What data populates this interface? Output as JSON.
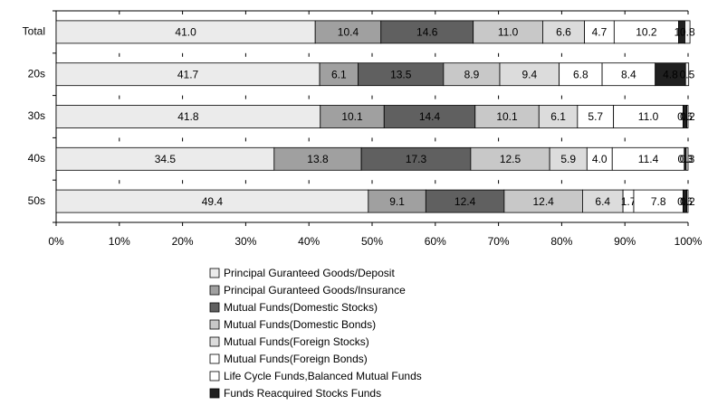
{
  "chart_data": {
    "type": "bar",
    "orientation": "horizontal",
    "stacked": true,
    "categories": [
      "Total",
      "20s",
      "30s",
      "40s",
      "50s"
    ],
    "xlim": [
      0,
      100
    ],
    "xticks": [
      {
        "value": 0,
        "label": "0%"
      },
      {
        "value": 10,
        "label": "10%"
      },
      {
        "value": 20,
        "label": "20%"
      },
      {
        "value": 30,
        "label": "30%"
      },
      {
        "value": 40,
        "label": "40%"
      },
      {
        "value": 50,
        "label": "50%"
      },
      {
        "value": 60,
        "label": "60%"
      },
      {
        "value": 70,
        "label": "70%"
      },
      {
        "value": 80,
        "label": "80%"
      },
      {
        "value": 90,
        "label": "90%"
      },
      {
        "value": 100,
        "label": "100%"
      }
    ],
    "series": [
      {
        "name": "Principal Guranteed Goods/Deposit",
        "color": "#ebebeb",
        "values": [
          41.0,
          41.7,
          41.8,
          34.5,
          49.4
        ],
        "value_labels": [
          "41.0",
          "41.7",
          "41.8",
          "34.5",
          "49.4"
        ]
      },
      {
        "name": "Principal Guranteed Goods/Insurance",
        "color": "#a0a0a0",
        "values": [
          10.4,
          6.1,
          10.1,
          13.8,
          9.1
        ],
        "value_labels": [
          "10.4",
          "6.1",
          "10.1",
          "13.8",
          "9.1"
        ]
      },
      {
        "name": "Mutual Funds(Domestic Stocks)",
        "color": "#606060",
        "values": [
          14.6,
          13.5,
          14.4,
          17.3,
          12.4
        ],
        "value_labels": [
          "14.6",
          "13.5",
          "14.4",
          "17.3",
          "12.4"
        ]
      },
      {
        "name": "Mutual Funds(Domestic Bonds)",
        "color": "#c8c8c8",
        "values": [
          11.0,
          8.9,
          10.1,
          12.5,
          12.4
        ],
        "value_labels": [
          "11.0",
          "8.9",
          "10.1",
          "12.5",
          "12.4"
        ]
      },
      {
        "name": "Mutual Funds(Foreign Stocks)",
        "color": "#dcdcdc",
        "values": [
          6.6,
          9.4,
          6.1,
          5.9,
          6.4
        ],
        "value_labels": [
          "6.6",
          "9.4",
          "6.1",
          "5.9",
          "6.4"
        ]
      },
      {
        "name": "Mutual Funds(Foreign Bonds)",
        "color": "#ffffff",
        "values": [
          4.7,
          6.8,
          5.7,
          4.0,
          1.7
        ],
        "value_labels": [
          "4.7",
          "6.8",
          "5.7",
          "4.0",
          "1.7"
        ]
      },
      {
        "name": "Life Cycle Funds,Balanced Mutual Funds",
        "color": "#ffffff",
        "values": [
          10.2,
          8.4,
          11.0,
          11.4,
          7.8
        ],
        "value_labels": [
          "10.2",
          "8.4",
          "11.0",
          "11.4",
          "7.8"
        ]
      },
      {
        "name": "Funds Reacquired Stocks Funds",
        "color": "#202020",
        "values": [
          1.0,
          4.8,
          0.6,
          0.3,
          0.6
        ],
        "value_labels": [
          "1.0",
          "4.8",
          "0.6",
          "0.3",
          "0.6"
        ]
      },
      {
        "color": "#f4f4f4",
        "values": [
          0.8,
          0.5,
          0.2,
          0.3,
          0.2
        ],
        "value_labels": [
          "0.8",
          "0.5",
          "0.2",
          "0.3",
          "0.2"
        ]
      }
    ]
  }
}
